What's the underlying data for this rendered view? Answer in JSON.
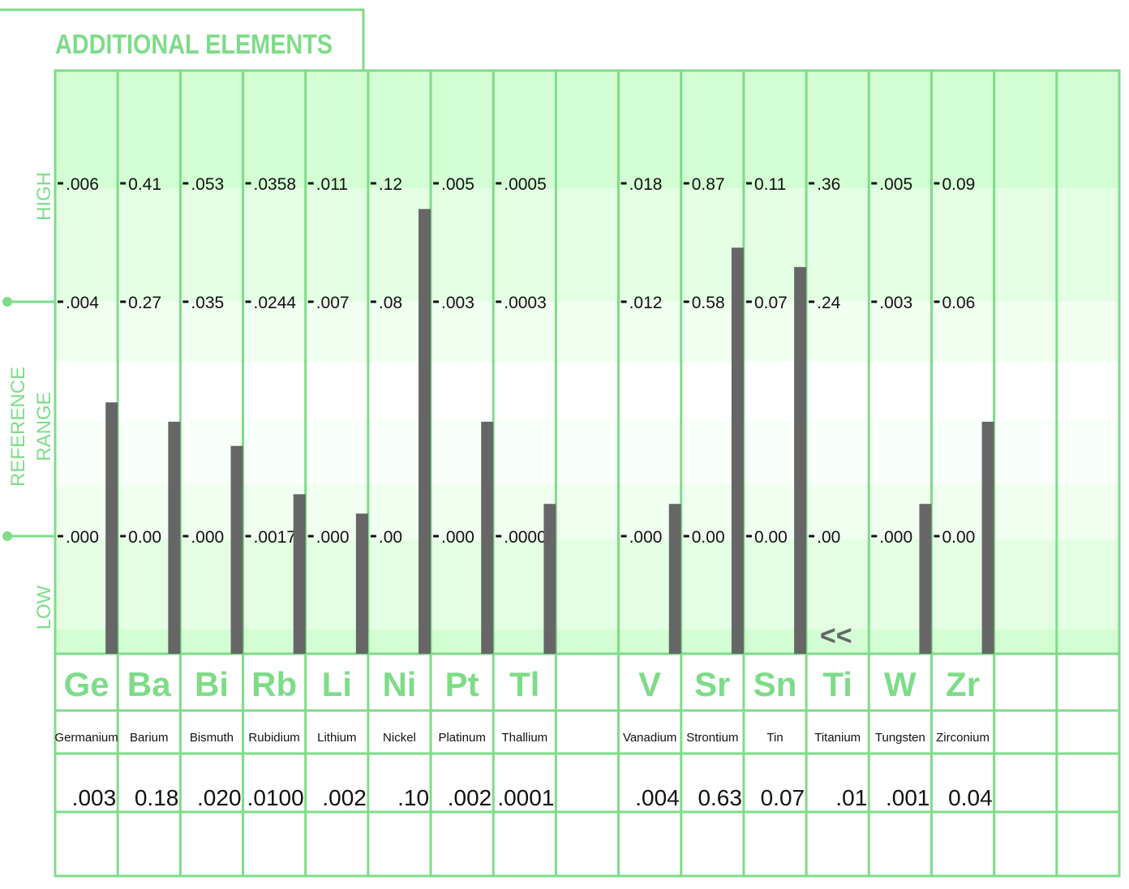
{
  "title": "ADDITIONAL  ELEMENTS",
  "axis_labels": {
    "high": "HIGH",
    "low": "LOW",
    "reference_line1": "REFERENCE",
    "reference_line2": "RANGE"
  },
  "colors": {
    "frame": "#7edc88",
    "title_text": "#7edc88",
    "band_dark": "#d3fed3",
    "band_mid": "#e4fee4",
    "band_light": "#f1fff1",
    "bar": "#666666",
    "tick_text": "#111111"
  },
  "low_marker": "<<",
  "chart_data": {
    "type": "bar",
    "title": "ADDITIONAL  ELEMENTS",
    "columns": [
      {
        "symbol": "Ge",
        "name": "Germanium",
        "value": ".003",
        "high": ".006",
        "ref_high": ".004",
        "ref_low": ".000",
        "level": 0.52
      },
      {
        "symbol": "Ba",
        "name": "Barium",
        "value": "0.18",
        "high": "0.41",
        "ref_high": "0.27",
        "ref_low": "0.00",
        "level": 0.48
      },
      {
        "symbol": "Bi",
        "name": "Bismuth",
        "value": ".020",
        "high": ".053",
        "ref_high": ".035",
        "ref_low": ".000",
        "level": 0.43
      },
      {
        "symbol": "Rb",
        "name": "Rubidium",
        "value": ".0100",
        "high": ".0358",
        "ref_high": ".0244",
        "ref_low": ".0017",
        "level": 0.33
      },
      {
        "symbol": "Li",
        "name": "Lithium",
        "value": ".002",
        "high": ".011",
        "ref_high": ".007",
        "ref_low": ".000",
        "level": 0.29
      },
      {
        "symbol": "Ni",
        "name": "Nickel",
        "value": ".10",
        "high": ".12",
        "ref_high": ".08",
        "ref_low": ".00",
        "level": 0.92
      },
      {
        "symbol": "Pt",
        "name": "Platinum",
        "value": ".002",
        "high": ".005",
        "ref_high": ".003",
        "ref_low": ".000",
        "level": 0.48
      },
      {
        "symbol": "Tl",
        "name": "Thallium",
        "value": ".0001",
        "high": ".0005",
        "ref_high": ".0003",
        "ref_low": ".0000",
        "level": 0.31
      },
      {
        "symbol": "",
        "name": "",
        "value": "",
        "high": "",
        "ref_high": "",
        "ref_low": "",
        "level": null
      },
      {
        "symbol": "V",
        "name": "Vanadium",
        "value": ".004",
        "high": ".018",
        "ref_high": ".012",
        "ref_low": ".000",
        "level": 0.31
      },
      {
        "symbol": "Sr",
        "name": "Strontium",
        "value": "0.63",
        "high": "0.87",
        "ref_high": "0.58",
        "ref_low": "0.00",
        "level": 0.84
      },
      {
        "symbol": "Sn",
        "name": "Tin",
        "value": "0.07",
        "high": "0.11",
        "ref_high": "0.07",
        "ref_low": "0.00",
        "level": 0.8
      },
      {
        "symbol": "Ti",
        "name": "Titanium",
        "value": ".01",
        "high": ".36",
        "ref_high": ".24",
        "ref_low": ".00",
        "level": 0,
        "below_low": true
      },
      {
        "symbol": "W",
        "name": "Tungsten",
        "value": ".001",
        "high": ".005",
        "ref_high": ".003",
        "ref_low": ".000",
        "level": 0.31
      },
      {
        "symbol": "Zr",
        "name": "Zirconium",
        "value": "0.04",
        "high": "0.09",
        "ref_high": "0.06",
        "ref_low": "0.00",
        "level": 0.48
      },
      {
        "symbol": "",
        "name": "",
        "value": "",
        "high": "",
        "ref_high": "",
        "ref_low": "",
        "level": null
      },
      {
        "symbol": "",
        "name": "",
        "value": "",
        "high": "",
        "ref_high": "",
        "ref_low": "",
        "level": null
      }
    ]
  }
}
